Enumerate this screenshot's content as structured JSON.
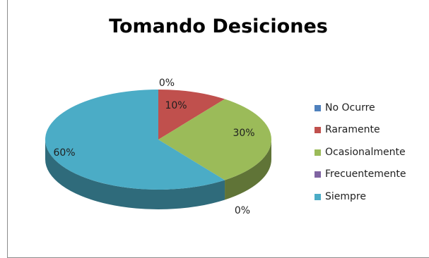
{
  "chart_data": {
    "type": "pie",
    "title": "Tomando Desiciones",
    "categories": [
      "No Ocurre",
      "Raramente",
      "Ocasionalmente",
      "Frecuentemente",
      "Siempre"
    ],
    "values": [
      0,
      10,
      30,
      0,
      60
    ],
    "data_labels": [
      "0%",
      "10%",
      "30%",
      "0%",
      "60%"
    ],
    "colors": [
      "#4f81bd",
      "#c0504d",
      "#9bbb59",
      "#8064a2",
      "#4bacc6"
    ],
    "legend_position": "right",
    "three_d": true
  }
}
